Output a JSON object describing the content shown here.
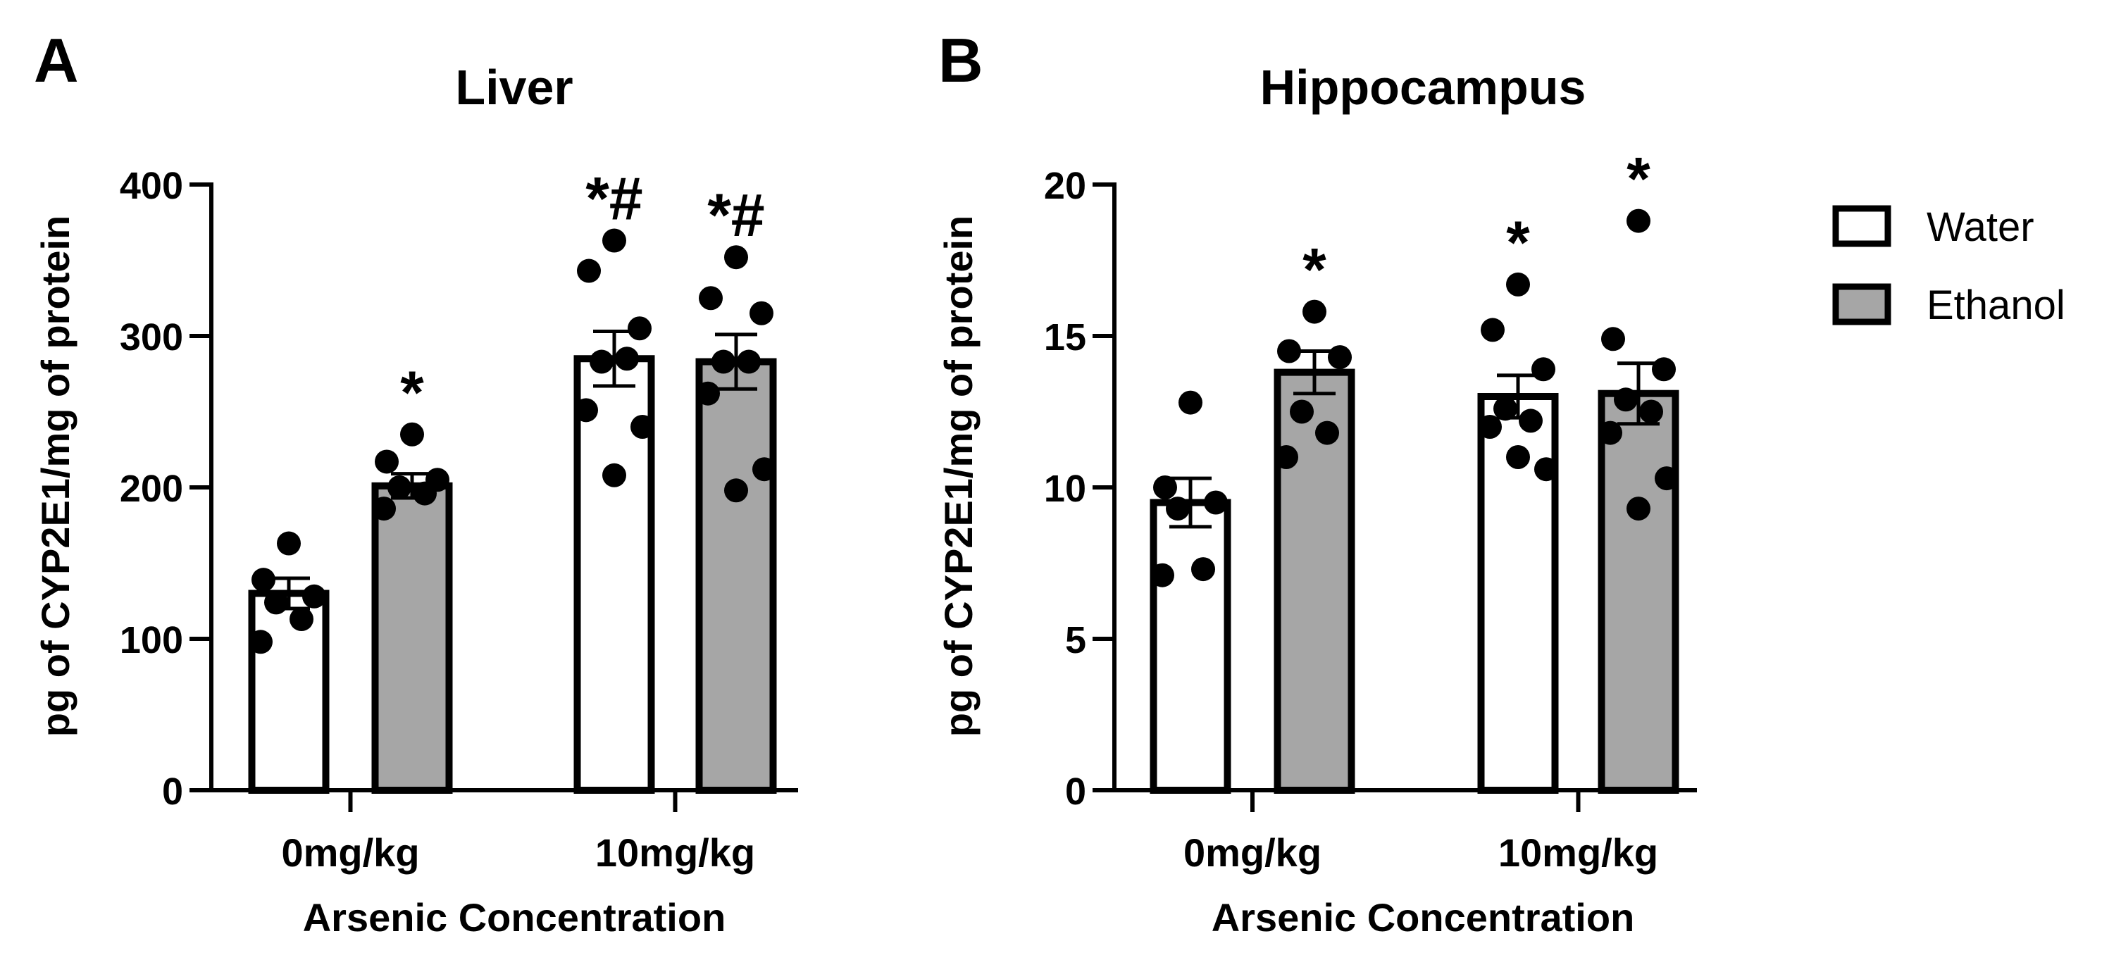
{
  "panels": [
    {
      "letter": "A",
      "title": "Liver"
    },
    {
      "letter": "B",
      "title": "Hippocampus"
    }
  ],
  "legend": [
    {
      "label": "Water",
      "color": "#ffffff"
    },
    {
      "label": "Ethanol",
      "color": "#a6a6a6"
    }
  ],
  "colors": {
    "water": "#ffffff",
    "ethanol": "#a6a6a6",
    "outline": "#000000"
  },
  "chart_data": [
    {
      "type": "bar",
      "title": "Liver",
      "panel": "A",
      "xlabel": "Arsenic Concentration",
      "ylabel": "pg of CYP2E1/mg of protein",
      "ylim": [
        0,
        400
      ],
      "yticks": [
        0,
        100,
        200,
        300,
        400
      ],
      "categories": [
        "0mg/kg",
        "10mg/kg"
      ],
      "series": [
        {
          "name": "Water",
          "values": [
            130,
            285
          ],
          "sem": [
            10,
            18
          ],
          "points": [
            [
              163,
              139,
              128,
              124,
              113,
              98
            ],
            [
              363,
              343,
              305,
              283,
              285,
              251,
              240,
              208
            ]
          ],
          "annotations": [
            "",
            "*#"
          ]
        },
        {
          "name": "Ethanol",
          "values": [
            201,
            283
          ],
          "sem": [
            8,
            18
          ],
          "points": [
            [
              235,
              217,
              205,
              200,
              196,
              186
            ],
            [
              352,
              325,
              315,
              283,
              283,
              262,
              212,
              198
            ]
          ],
          "annotations": [
            "*",
            "*#"
          ]
        }
      ]
    },
    {
      "type": "bar",
      "title": "Hippocampus",
      "panel": "B",
      "xlabel": "Arsenic Concentration",
      "ylabel": "pg of CYP2E1/mg of protein",
      "ylim": [
        0,
        20
      ],
      "yticks": [
        0,
        5,
        10,
        15,
        20
      ],
      "categories": [
        "0mg/kg",
        "10mg/kg"
      ],
      "series": [
        {
          "name": "Water",
          "values": [
            9.5,
            13.0
          ],
          "sem": [
            0.8,
            0.7
          ],
          "points": [
            [
              12.8,
              10.0,
              9.5,
              9.3,
              7.3,
              7.1
            ],
            [
              16.7,
              15.2,
              13.9,
              12.6,
              12.2,
              12.0,
              10.6,
              11.0
            ]
          ],
          "annotations": [
            "",
            "*"
          ]
        },
        {
          "name": "Ethanol",
          "values": [
            13.8,
            13.1
          ],
          "sem": [
            0.7,
            1.0
          ],
          "points": [
            [
              15.8,
              14.5,
              14.3,
              12.5,
              11.8,
              11.0
            ],
            [
              18.8,
              14.9,
              13.9,
              12.9,
              12.5,
              11.8,
              10.3,
              9.3
            ]
          ],
          "annotations": [
            "*",
            "*"
          ]
        }
      ]
    }
  ]
}
